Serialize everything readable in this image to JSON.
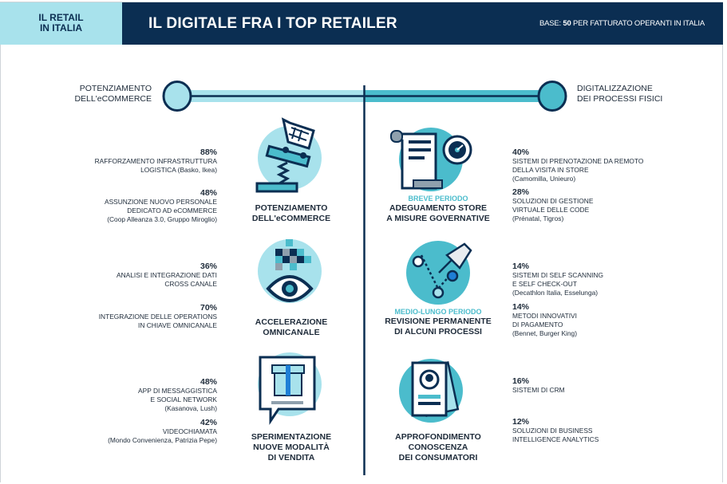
{
  "header": {
    "section_tab": "IL RETAIL IN ITALIA",
    "section_tab_lines": [
      "IL RETAIL",
      "IN ITALIA"
    ],
    "title": "IL DIGITALE FRA I TOP RETAILER",
    "base_prefix": "BASE: ",
    "base_number": "50",
    "base_suffix": " PER FATTURATO OPERANTI IN ITALIA"
  },
  "colors": {
    "navy": "#0b2e52",
    "light_cyan": "#a8e2ec",
    "teal": "#4bbccc"
  },
  "axis": {
    "left_label": [
      "POTENZIAMENTO",
      "DELL'eCOMMERCE"
    ],
    "right_label": [
      "DIGITALIZZAZIONE",
      "DEI PROCESSI FISICI"
    ]
  },
  "left": [
    {
      "icon": "shopping-cart-spring-icon",
      "caption": [
        "POTENZIAMENTO",
        "DELL'eCOMMERCE"
      ],
      "stats": [
        {
          "pct": "88%",
          "lines": [
            "RAFFORZAMENTO INFRASTRUTTURA",
            "LOGISTICA (Basko, Ikea)"
          ]
        },
        {
          "pct": "48%",
          "lines": [
            "ASSUNZIONE NUOVO PERSONALE",
            "DEDICATO AD eCOMMERCE",
            "(Coop Alleanza 3.0, Gruppo Miroglio)"
          ]
        }
      ]
    },
    {
      "icon": "pixel-eye-icon",
      "caption": [
        "ACCELERAZIONE",
        "OMNICANALE"
      ],
      "stats": [
        {
          "pct": "36%",
          "lines": [
            "ANALISI E INTEGRAZIONE DATI",
            "CROSS CANALE"
          ]
        },
        {
          "pct": "70%",
          "lines": [
            "INTEGRAZIONE DELLE OPERATIONS",
            "IN CHIAVE OMNICANALE"
          ]
        }
      ]
    },
    {
      "icon": "gift-chat-icon",
      "caption": [
        "SPERIMENTAZIONE",
        "NUOVE MODALITÀ",
        "DI VENDITA"
      ],
      "stats": [
        {
          "pct": "48%",
          "lines": [
            "APP DI MESSAGGISTICA",
            "E SOCIAL NETWORK",
            "(Kasanova, Lush)"
          ]
        },
        {
          "pct": "42%",
          "lines": [
            "VIDEOCHIAMATA",
            "(Mondo Convenienza, Patrizia Pepe)"
          ]
        }
      ]
    }
  ],
  "right": [
    {
      "icon": "document-stopwatch-icon",
      "period": "BREVE PERIODO",
      "caption": [
        "ADEGUAMENTO STORE",
        "A MISURE GOVERNATIVE"
      ],
      "stats": [
        {
          "pct": "40%",
          "lines": [
            "SISTEMI DI PRENOTAZIONE DA REMOTO",
            "DELLA VISITA IN STORE",
            "(Camomilla, Unieuro)"
          ]
        },
        {
          "pct": "28%",
          "lines": [
            "SOLUZIONI DI GESTIONE",
            "VIRTUALE DELLE CODE",
            "(Prénatal, Tigros)"
          ]
        }
      ]
    },
    {
      "icon": "pin-route-icon",
      "period": "MEDIO-LUNGO PERIODO",
      "caption": [
        "REVISIONE PERMANENTE",
        "DI ALCUNI PROCESSI"
      ],
      "stats": [
        {
          "pct": "14%",
          "lines": [
            "SISTEMI DI SELF SCANNING",
            "E SELF CHECK-OUT",
            "(Decathlon Italia, Esselunga)"
          ]
        },
        {
          "pct": "14%",
          "lines": [
            "METODI INNOVATIVI",
            "DI PAGAMENTO",
            "(Bennet, Burger King)"
          ]
        }
      ]
    },
    {
      "icon": "customer-profile-icon",
      "caption": [
        "APPROFONDIMENTO",
        "CONOSCENZA",
        "DEI CONSUMATORI"
      ],
      "stats": [
        {
          "pct": "16%",
          "lines": [
            "SISTEMI DI CRM"
          ]
        },
        {
          "pct": "12%",
          "lines": [
            "SOLUZIONI DI BUSINESS",
            "INTELLIGENCE ANALYTICS"
          ]
        }
      ]
    }
  ]
}
